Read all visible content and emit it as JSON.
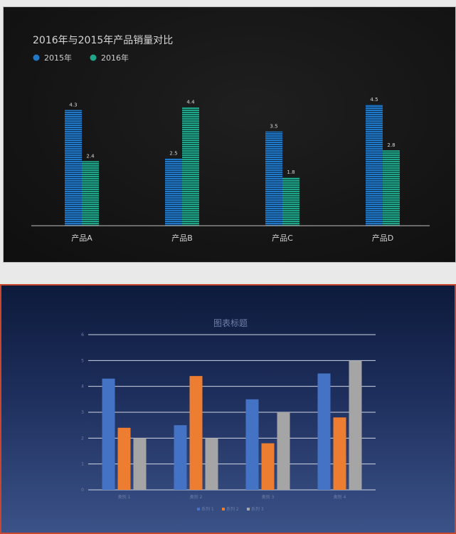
{
  "chart_data": [
    {
      "type": "bar",
      "title": "2016年与2015年产品销量对比",
      "categories": [
        "产品A",
        "产品B",
        "产品C",
        "产品D"
      ],
      "series": [
        {
          "name": "2015年",
          "values": [
            4.3,
            2.5,
            3.5,
            4.5
          ],
          "color": "#1f78c8"
        },
        {
          "name": "2016年",
          "values": [
            2.4,
            4.4,
            1.8,
            2.8
          ],
          "color": "#1fa58a"
        }
      ],
      "ylim": [
        0,
        5.0
      ],
      "legend": "top-left",
      "data_labels": true,
      "grid": false,
      "xlabel": "",
      "ylabel": ""
    },
    {
      "type": "bar",
      "title": "图表标题",
      "categories": [
        "类别 1",
        "类别 2",
        "类别 3",
        "类别 4"
      ],
      "series": [
        {
          "name": "系列 1",
          "values": [
            4.3,
            2.5,
            3.5,
            4.5
          ],
          "color": "#4472c4"
        },
        {
          "name": "系列 2",
          "values": [
            2.4,
            4.4,
            1.8,
            2.8
          ],
          "color": "#ed7d31"
        },
        {
          "name": "系列 3",
          "values": [
            2,
            2,
            3,
            5
          ],
          "color": "#a5a5a5"
        }
      ],
      "ylim": [
        0,
        6
      ],
      "yticks": [
        "0",
        "1",
        "2",
        "3",
        "4",
        "5",
        "6"
      ],
      "legend": "bottom",
      "grid": true,
      "xlabel": "",
      "ylabel": ""
    }
  ]
}
